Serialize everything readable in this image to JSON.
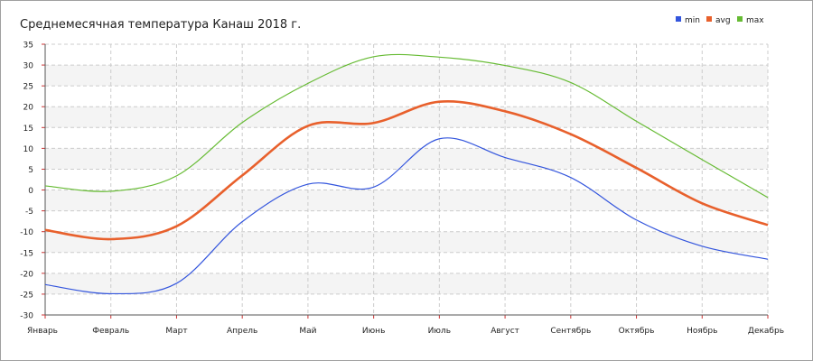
{
  "chart_data": {
    "type": "line",
    "title": "Среднемесячная температура Канаш  2018 г.",
    "categories": [
      "Январь",
      "Февраль",
      "Март",
      "Апрель",
      "Май",
      "Июнь",
      "Июль",
      "Август",
      "Сентябрь",
      "Октябрь",
      "Ноябрь",
      "Декабрь"
    ],
    "series": [
      {
        "name": "min",
        "color": "#3355dd",
        "values": [
          -22.7,
          -24.9,
          -22.4,
          -7.6,
          1.4,
          0.7,
          12.3,
          7.8,
          3.0,
          -7.2,
          -13.5,
          -16.6
        ]
      },
      {
        "name": "avg",
        "color": "#e8602c",
        "values": [
          -9.6,
          -11.8,
          -8.7,
          3.5,
          15.4,
          16.1,
          21.2,
          18.9,
          13.4,
          5.3,
          -3.2,
          -8.4
        ]
      },
      {
        "name": "max",
        "color": "#66bb33",
        "values": [
          1.0,
          -0.3,
          3.4,
          16.2,
          25.6,
          32.0,
          31.9,
          29.9,
          25.8,
          16.5,
          7.3,
          -1.8
        ]
      }
    ],
    "ylim": [
      -30,
      35
    ],
    "yticks": [
      35,
      30,
      25,
      20,
      15,
      10,
      5,
      0,
      -5,
      -10,
      -15,
      -20,
      -25,
      -30
    ],
    "grid": true,
    "legend_position": "top-right"
  }
}
